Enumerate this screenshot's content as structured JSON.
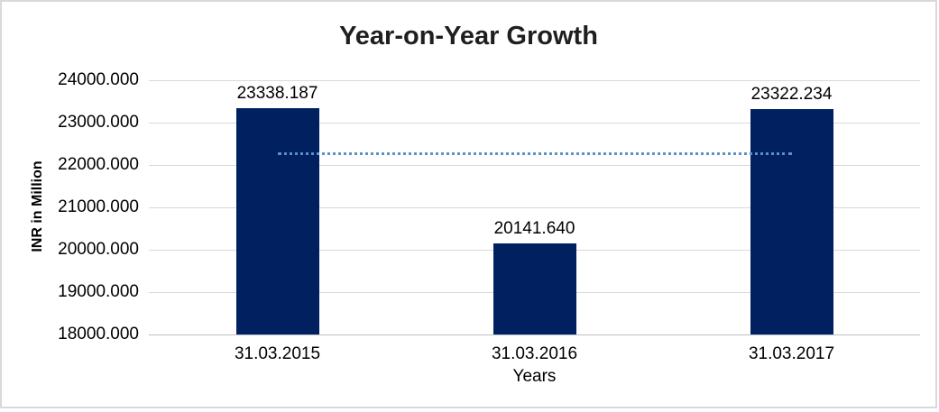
{
  "window": {
    "background_color": "#ffffff",
    "border_color": "#d9d9d9"
  },
  "chart_data": {
    "type": "bar",
    "title": "Year-on-Year Growth",
    "xlabel": "Years",
    "ylabel": "INR in Million",
    "categories": [
      "31.03.2015",
      "31.03.2016",
      "31.03.2017"
    ],
    "values": [
      23338.187,
      20141.64,
      23322.234
    ],
    "data_labels": [
      "23338.187",
      "20141.640",
      "23322.234"
    ],
    "series": [
      {
        "name": "INR in Million",
        "values": [
          23338.187,
          20141.64,
          23322.234
        ]
      }
    ],
    "ylim": [
      18000,
      24000
    ],
    "ytick_step": 1000,
    "ytick_labels": [
      "24000.000",
      "23000.000",
      "22000.000",
      "21000.000",
      "20000.000",
      "19000.000",
      "18000.000"
    ],
    "grid": true,
    "legend": "none",
    "bar_color": "#002060",
    "gridline_color": "#d9d9d9",
    "axis_line_color": "#bfbfbf",
    "text_color": "#000000",
    "title_color": "#1f1f1f",
    "trendline": {
      "type": "flat-average",
      "value": 22267.354,
      "style": "dotted",
      "color": "#5b8fd0"
    }
  }
}
